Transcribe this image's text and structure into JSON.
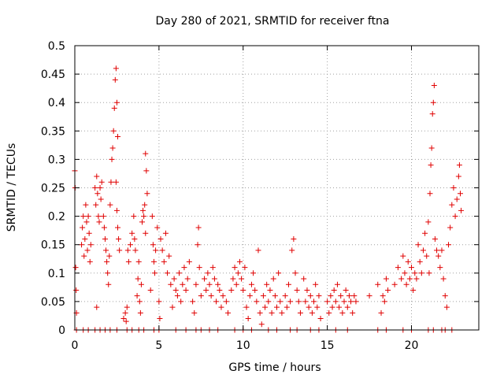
{
  "chart_data": {
    "type": "scatter",
    "title": "Day 280 of 2021, SRMTID for receiver ftna",
    "xlabel": "GPS time / hours",
    "ylabel": "SRMTID / TECUs",
    "xlim": [
      0,
      24
    ],
    "ylim": [
      0,
      0.5
    ],
    "x_ticks": [
      0,
      5,
      10,
      15,
      20
    ],
    "y_ticks": [
      0,
      0.05,
      0.1,
      0.15,
      0.2,
      0.25,
      0.3,
      0.35,
      0.4,
      0.45,
      0.5
    ],
    "x_tick_labels": [
      "0",
      "5",
      "10",
      "15",
      "20"
    ],
    "y_tick_labels": [
      "0",
      "0.05",
      "0.1",
      "0.15",
      "0.2",
      "0.25",
      "0.3",
      "0.35",
      "0.4",
      "0.45",
      "0.5"
    ],
    "grid": true,
    "marker": "+",
    "color": "#e00000",
    "series": [
      {
        "name": "ftna",
        "points": [
          [
            0.0,
            0.28
          ],
          [
            0.02,
            0.25
          ],
          [
            0.05,
            0.11
          ],
          [
            0.08,
            0.07
          ],
          [
            0.1,
            0.03
          ],
          [
            0.1,
            0.0
          ],
          [
            0.4,
            0.15
          ],
          [
            0.45,
            0.18
          ],
          [
            0.5,
            0.2
          ],
          [
            0.55,
            0.13
          ],
          [
            0.6,
            0.16
          ],
          [
            0.65,
            0.22
          ],
          [
            0.7,
            0.19
          ],
          [
            0.75,
            0.14
          ],
          [
            0.8,
            0.2
          ],
          [
            0.85,
            0.17
          ],
          [
            0.9,
            0.12
          ],
          [
            0.95,
            0.15
          ],
          [
            0.5,
            0.0
          ],
          [
            0.8,
            0.0
          ],
          [
            1.2,
            0.25
          ],
          [
            1.25,
            0.22
          ],
          [
            1.3,
            0.27
          ],
          [
            1.35,
            0.24
          ],
          [
            1.4,
            0.2
          ],
          [
            1.45,
            0.19
          ],
          [
            1.5,
            0.25
          ],
          [
            1.55,
            0.23
          ],
          [
            1.6,
            0.26
          ],
          [
            1.3,
            0.04
          ],
          [
            1.2,
            0.0
          ],
          [
            1.5,
            0.0
          ],
          [
            1.7,
            0.2
          ],
          [
            1.75,
            0.18
          ],
          [
            1.8,
            0.16
          ],
          [
            1.85,
            0.14
          ],
          [
            1.9,
            0.12
          ],
          [
            1.95,
            0.1
          ],
          [
            2.0,
            0.08
          ],
          [
            2.05,
            0.13
          ],
          [
            2.1,
            0.22
          ],
          [
            2.15,
            0.26
          ],
          [
            2.2,
            0.3
          ],
          [
            2.25,
            0.32
          ],
          [
            2.1,
            0.0
          ],
          [
            1.8,
            0.0
          ],
          [
            2.3,
            0.35
          ],
          [
            2.35,
            0.39
          ],
          [
            2.4,
            0.44
          ],
          [
            2.45,
            0.46
          ],
          [
            2.5,
            0.4
          ],
          [
            2.55,
            0.34
          ],
          [
            2.45,
            0.26
          ],
          [
            2.5,
            0.21
          ],
          [
            2.55,
            0.18
          ],
          [
            2.6,
            0.16
          ],
          [
            2.65,
            0.14
          ],
          [
            2.5,
            0.0
          ],
          [
            2.9,
            0.02
          ],
          [
            3.0,
            0.03
          ],
          [
            3.05,
            0.015
          ],
          [
            3.1,
            0.04
          ],
          [
            3.15,
            0.14
          ],
          [
            3.2,
            0.12
          ],
          [
            3.3,
            0.15
          ],
          [
            3.4,
            0.17
          ],
          [
            3.5,
            0.2
          ],
          [
            3.55,
            0.16
          ],
          [
            3.6,
            0.14
          ],
          [
            3.1,
            0.0
          ],
          [
            3.4,
            0.0
          ],
          [
            3.7,
            0.06
          ],
          [
            3.75,
            0.09
          ],
          [
            3.8,
            0.12
          ],
          [
            3.85,
            0.05
          ],
          [
            3.9,
            0.03
          ],
          [
            3.95,
            0.08
          ],
          [
            4.0,
            0.19
          ],
          [
            4.05,
            0.21
          ],
          [
            4.1,
            0.2
          ],
          [
            4.15,
            0.22
          ],
          [
            4.2,
            0.31
          ],
          [
            4.25,
            0.28
          ],
          [
            4.3,
            0.24
          ],
          [
            4.2,
            0.17
          ],
          [
            3.8,
            0.0
          ],
          [
            4.1,
            0.0
          ],
          [
            4.5,
            0.07
          ],
          [
            4.6,
            0.2
          ],
          [
            4.65,
            0.15
          ],
          [
            4.7,
            0.12
          ],
          [
            4.75,
            0.1
          ],
          [
            4.8,
            0.14
          ],
          [
            4.9,
            0.18
          ],
          [
            5.0,
            0.05
          ],
          [
            5.05,
            0.02
          ],
          [
            5.1,
            0.16
          ],
          [
            5.2,
            0.14
          ],
          [
            5.3,
            0.12
          ],
          [
            5.4,
            0.17
          ],
          [
            5.5,
            0.1
          ],
          [
            5.6,
            0.13
          ],
          [
            4.7,
            0.0
          ],
          [
            5.0,
            0.0
          ],
          [
            5.7,
            0.08
          ],
          [
            5.8,
            0.04
          ],
          [
            5.9,
            0.09
          ],
          [
            6.0,
            0.07
          ],
          [
            6.1,
            0.06
          ],
          [
            6.2,
            0.1
          ],
          [
            6.3,
            0.05
          ],
          [
            6.4,
            0.08
          ],
          [
            6.5,
            0.11
          ],
          [
            6.6,
            0.07
          ],
          [
            6.7,
            0.09
          ],
          [
            6.8,
            0.12
          ],
          [
            6.0,
            0.0
          ],
          [
            6.6,
            0.0
          ],
          [
            7.0,
            0.05
          ],
          [
            7.1,
            0.03
          ],
          [
            7.2,
            0.08
          ],
          [
            7.3,
            0.15
          ],
          [
            7.35,
            0.18
          ],
          [
            7.4,
            0.11
          ],
          [
            7.5,
            0.06
          ],
          [
            7.2,
            0.0
          ],
          [
            7.5,
            0.0
          ],
          [
            7.7,
            0.09
          ],
          [
            7.8,
            0.07
          ],
          [
            7.9,
            0.1
          ],
          [
            8.0,
            0.08
          ],
          [
            8.1,
            0.06
          ],
          [
            8.2,
            0.11
          ],
          [
            8.3,
            0.09
          ],
          [
            8.4,
            0.05
          ],
          [
            8.5,
            0.08
          ],
          [
            8.6,
            0.07
          ],
          [
            8.7,
            0.04
          ],
          [
            8.8,
            0.06
          ],
          [
            8.0,
            0.0
          ],
          [
            8.5,
            0.0
          ],
          [
            9.0,
            0.05
          ],
          [
            9.1,
            0.03
          ],
          [
            9.3,
            0.07
          ],
          [
            9.4,
            0.09
          ],
          [
            9.5,
            0.11
          ],
          [
            9.6,
            0.08
          ],
          [
            9.7,
            0.1
          ],
          [
            9.8,
            0.12
          ],
          [
            9.9,
            0.09
          ],
          [
            10.0,
            0.07
          ],
          [
            10.1,
            0.11
          ],
          [
            9.5,
            0.0
          ],
          [
            10.0,
            0.0
          ],
          [
            10.2,
            0.04
          ],
          [
            10.3,
            0.02
          ],
          [
            10.4,
            0.06
          ],
          [
            10.5,
            0.08
          ],
          [
            10.6,
            0.1
          ],
          [
            10.7,
            0.07
          ],
          [
            10.8,
            0.05
          ],
          [
            10.9,
            0.14
          ],
          [
            11.0,
            0.03
          ],
          [
            11.1,
            0.01
          ],
          [
            10.5,
            0.0
          ],
          [
            11.2,
            0.06
          ],
          [
            11.3,
            0.04
          ],
          [
            11.4,
            0.08
          ],
          [
            11.5,
            0.05
          ],
          [
            11.6,
            0.07
          ],
          [
            11.7,
            0.03
          ],
          [
            11.8,
            0.09
          ],
          [
            11.9,
            0.06
          ],
          [
            12.0,
            0.04
          ],
          [
            12.1,
            0.1
          ],
          [
            12.2,
            0.05
          ],
          [
            12.3,
            0.03
          ],
          [
            11.5,
            0.0
          ],
          [
            12.0,
            0.0
          ],
          [
            12.5,
            0.06
          ],
          [
            12.6,
            0.04
          ],
          [
            12.7,
            0.08
          ],
          [
            12.8,
            0.05
          ],
          [
            12.9,
            0.14
          ],
          [
            13.0,
            0.16
          ],
          [
            13.1,
            0.1
          ],
          [
            13.2,
            0.07
          ],
          [
            13.3,
            0.05
          ],
          [
            13.4,
            0.03
          ],
          [
            12.8,
            0.0
          ],
          [
            13.2,
            0.0
          ],
          [
            13.6,
            0.09
          ],
          [
            13.7,
            0.05
          ],
          [
            13.8,
            0.07
          ],
          [
            13.9,
            0.04
          ],
          [
            14.0,
            0.06
          ],
          [
            14.1,
            0.03
          ],
          [
            14.2,
            0.05
          ],
          [
            14.3,
            0.08
          ],
          [
            14.4,
            0.04
          ],
          [
            14.5,
            0.06
          ],
          [
            14.6,
            0.02
          ],
          [
            14.0,
            0.0
          ],
          [
            14.5,
            0.0
          ],
          [
            15.0,
            0.05
          ],
          [
            15.1,
            0.03
          ],
          [
            15.2,
            0.06
          ],
          [
            15.3,
            0.04
          ],
          [
            15.4,
            0.07
          ],
          [
            15.5,
            0.05
          ],
          [
            15.6,
            0.08
          ],
          [
            15.7,
            0.04
          ],
          [
            15.8,
            0.06
          ],
          [
            15.9,
            0.03
          ],
          [
            16.0,
            0.05
          ],
          [
            16.1,
            0.07
          ],
          [
            16.2,
            0.04
          ],
          [
            16.3,
            0.06
          ],
          [
            16.4,
            0.05
          ],
          [
            16.5,
            0.03
          ],
          [
            16.6,
            0.06
          ],
          [
            16.7,
            0.05
          ],
          [
            15.5,
            0.0
          ],
          [
            16.2,
            0.0
          ],
          [
            17.5,
            0.06
          ],
          [
            18.0,
            0.08
          ],
          [
            18.2,
            0.03
          ],
          [
            18.3,
            0.06
          ],
          [
            18.4,
            0.05
          ],
          [
            18.5,
            0.09
          ],
          [
            18.6,
            0.07
          ],
          [
            18.0,
            0.0
          ],
          [
            18.5,
            0.0
          ],
          [
            19.0,
            0.08
          ],
          [
            19.2,
            0.11
          ],
          [
            19.4,
            0.09
          ],
          [
            19.5,
            0.13
          ],
          [
            19.6,
            0.1
          ],
          [
            19.7,
            0.08
          ],
          [
            19.8,
            0.12
          ],
          [
            19.9,
            0.09
          ],
          [
            20.0,
            0.11
          ],
          [
            20.1,
            0.07
          ],
          [
            20.2,
            0.1
          ],
          [
            20.3,
            0.09
          ],
          [
            19.5,
            0.0
          ],
          [
            20.0,
            0.0
          ],
          [
            20.4,
            0.15
          ],
          [
            20.5,
            0.12
          ],
          [
            20.6,
            0.1
          ],
          [
            20.7,
            0.14
          ],
          [
            20.8,
            0.17
          ],
          [
            20.9,
            0.13
          ],
          [
            21.0,
            0.19
          ],
          [
            21.05,
            0.1
          ],
          [
            21.1,
            0.24
          ],
          [
            21.15,
            0.29
          ],
          [
            21.2,
            0.32
          ],
          [
            21.25,
            0.38
          ],
          [
            21.3,
            0.4
          ],
          [
            21.35,
            0.43
          ],
          [
            21.4,
            0.16
          ],
          [
            21.5,
            0.14
          ],
          [
            21.0,
            0.0
          ],
          [
            21.3,
            0.0
          ],
          [
            21.6,
            0.13
          ],
          [
            21.7,
            0.11
          ],
          [
            21.8,
            0.14
          ],
          [
            21.9,
            0.09
          ],
          [
            22.0,
            0.06
          ],
          [
            22.1,
            0.04
          ],
          [
            22.2,
            0.15
          ],
          [
            21.8,
            0.0
          ],
          [
            22.0,
            0.0
          ],
          [
            22.3,
            0.18
          ],
          [
            22.4,
            0.22
          ],
          [
            22.5,
            0.25
          ],
          [
            22.6,
            0.2
          ],
          [
            22.7,
            0.23
          ],
          [
            22.8,
            0.27
          ],
          [
            22.85,
            0.29
          ],
          [
            22.9,
            0.24
          ],
          [
            22.95,
            0.21
          ],
          [
            22.4,
            0.0
          ]
        ]
      }
    ]
  }
}
